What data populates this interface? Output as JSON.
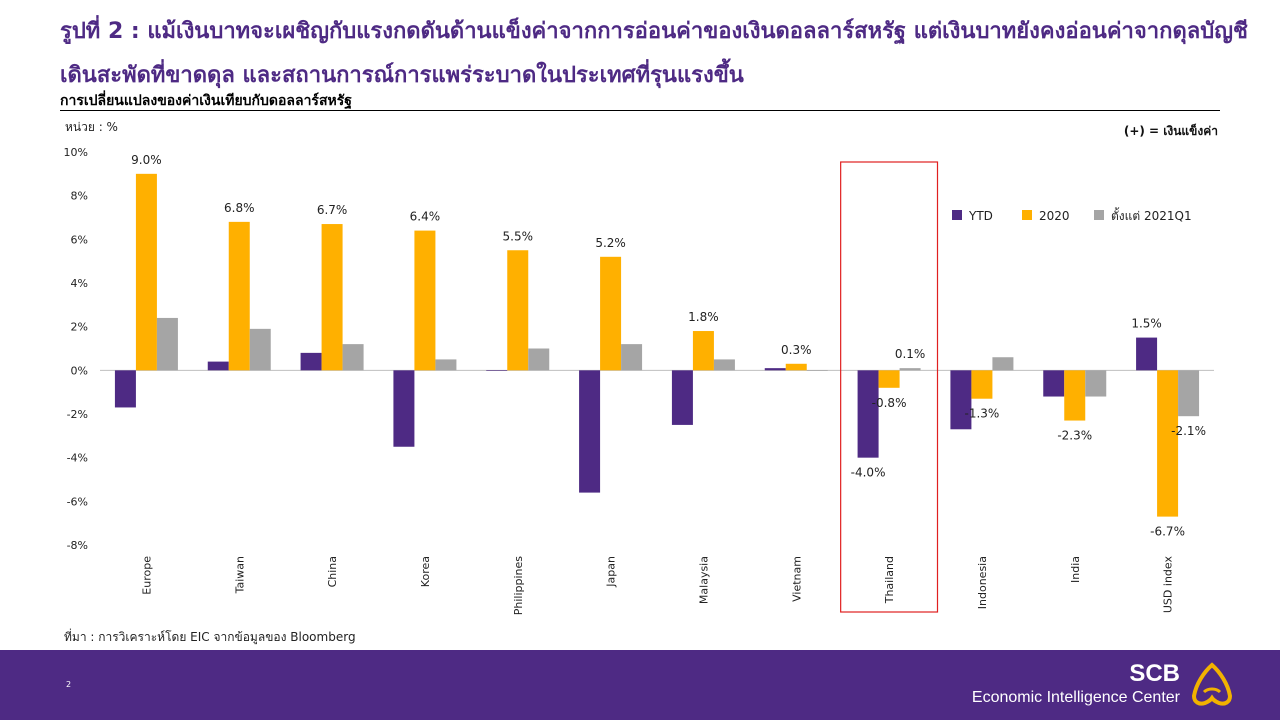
{
  "header": {
    "title": "รูปที่ 2 : แม้เงินบาทจะเผชิญกับแรงกดดันด้านแข็งค่าจากการอ่อนค่าของเงินดอลลาร์สหรัฐ แต่เงินบาทยังคงอ่อนค่าจากดุลบัญชีเดินสะพัดที่ขาดดุล และสถานการณ์การแพร่ระบาดในประเทศที่รุนแรงขึ้น",
    "subtitle": "การเปลี่ยนแปลงของค่าเงินเทียบกับดอลลาร์สหรัฐ",
    "unit": "หน่วย : %",
    "note": "(+) = เงินแข็งค่า"
  },
  "source": "ที่มา : การวิเคราะห์โดย EIC จากข้อมูลของ Bloomberg",
  "footer": {
    "page_number": "2",
    "brand_name": "SCB",
    "brand_sub": "Economic Intelligence Center",
    "background_color": "#4e2a84"
  },
  "chart_data": {
    "type": "bar",
    "categories": [
      "Europe",
      "Taiwan",
      "China",
      "Korea",
      "Philippines",
      "Japan",
      "Malaysia",
      "Vietnam",
      "Thailand",
      "Indonesia",
      "India",
      "USD index"
    ],
    "series": [
      {
        "name": "YTD",
        "color": "#4e2a84",
        "values": [
          -1.7,
          0.4,
          0.8,
          -3.5,
          0.0,
          -5.6,
          -2.5,
          0.1,
          -4.0,
          -2.7,
          -1.2,
          1.5
        ]
      },
      {
        "name": "2020",
        "color": "#ffb000",
        "values": [
          9.0,
          6.8,
          6.7,
          6.4,
          5.5,
          5.2,
          1.8,
          0.3,
          -0.8,
          -1.3,
          -2.3,
          -6.7
        ]
      },
      {
        "name": "ตั้งแต่ 2021Q1",
        "color": "#a5a5a5",
        "values": [
          2.4,
          1.9,
          1.2,
          0.5,
          1.0,
          1.2,
          0.5,
          0.0,
          0.1,
          0.6,
          -1.2,
          -2.1
        ]
      }
    ],
    "data_labels": [
      {
        "category": "Europe",
        "series": "2020",
        "text": "9.0%"
      },
      {
        "category": "Taiwan",
        "series": "2020",
        "text": "6.8%"
      },
      {
        "category": "China",
        "series": "2020",
        "text": "6.7%"
      },
      {
        "category": "Korea",
        "series": "2020",
        "text": "6.4%"
      },
      {
        "category": "Philippines",
        "series": "2020",
        "text": "5.5%"
      },
      {
        "category": "Japan",
        "series": "2020",
        "text": "5.2%"
      },
      {
        "category": "Malaysia",
        "series": "2020",
        "text": "1.8%"
      },
      {
        "category": "Vietnam",
        "series": "2020",
        "text": "0.3%"
      },
      {
        "category": "Thailand",
        "series": "ตั้งแต่ 2021Q1",
        "text": "0.1%"
      },
      {
        "category": "Thailand",
        "series": "2020",
        "text": "-0.8%"
      },
      {
        "category": "Thailand",
        "series": "YTD",
        "text": "-4.0%"
      },
      {
        "category": "Indonesia",
        "series": "2020",
        "text": "-1.3%"
      },
      {
        "category": "India",
        "series": "2020",
        "text": "-2.3%"
      },
      {
        "category": "USD index",
        "series": "YTD",
        "text": "1.5%"
      },
      {
        "category": "USD index",
        "series": "ตั้งแต่ 2021Q1",
        "text": "-2.1%"
      },
      {
        "category": "USD index",
        "series": "2020",
        "text": "-6.7%"
      }
    ],
    "yticks": [
      "10%",
      "8%",
      "6%",
      "4%",
      "2%",
      "0%",
      "-2%",
      "-4%",
      "-6%",
      "-8%"
    ],
    "ylim": [
      -8,
      10
    ],
    "highlight_category": "Thailand",
    "highlight_color": "#e02020",
    "legend_position": "right",
    "grid": false
  }
}
